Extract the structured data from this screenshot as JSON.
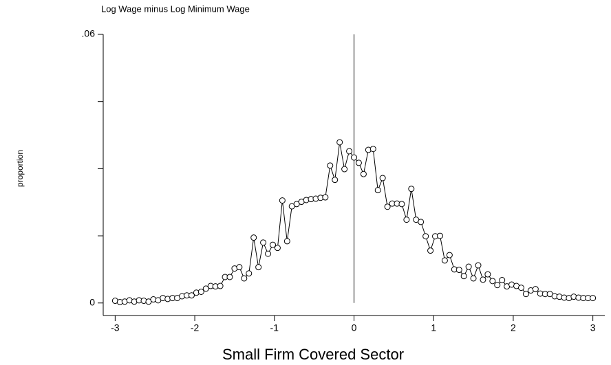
{
  "chart_data": {
    "type": "line",
    "title": "Log Wage minus Log Minimum Wage",
    "x_label": "Small Firm Covered Sector",
    "y_label": "proportion",
    "x": [
      -3,
      -2.94,
      -2.88,
      -2.82,
      -2.76,
      -2.7,
      -2.64,
      -2.58,
      -2.52,
      -2.46,
      -2.4,
      -2.34,
      -2.28,
      -2.22,
      -2.16,
      -2.1,
      -2.04,
      -1.98,
      -1.92,
      -1.86,
      -1.8,
      -1.74,
      -1.68,
      -1.62,
      -1.56,
      -1.5,
      -1.44,
      -1.38,
      -1.32,
      -1.26,
      -1.2,
      -1.14,
      -1.08,
      -1.02,
      -0.96,
      -0.9,
      -0.84,
      -0.78,
      -0.72,
      -0.66,
      -0.6,
      -0.54,
      -0.48,
      -0.42,
      -0.36,
      -0.3,
      -0.24,
      -0.18,
      -0.12,
      -0.06,
      0,
      0.06,
      0.12,
      0.18,
      0.24,
      0.3,
      0.36,
      0.42,
      0.48,
      0.54,
      0.6,
      0.66,
      0.72,
      0.78,
      0.84,
      0.9,
      0.96,
      1.02,
      1.08,
      1.14,
      1.2,
      1.26,
      1.32,
      1.38,
      1.44,
      1.5,
      1.56,
      1.62,
      1.68,
      1.74,
      1.8,
      1.86,
      1.92,
      1.98,
      2.04,
      2.1,
      2.16,
      2.22,
      2.28,
      2.34,
      2.4,
      2.46,
      2.52,
      2.58,
      2.64,
      2.7,
      2.76,
      2.82,
      2.88,
      2.94,
      3
    ],
    "series": [
      {
        "color": "#000000",
        "values": [
          0.0005,
          0.0002,
          0.0003,
          0.0006,
          0.0003,
          0.0006,
          0.0005,
          0.0003,
          0.0008,
          0.0006,
          0.0011,
          0.0009,
          0.0011,
          0.0011,
          0.0015,
          0.0017,
          0.0017,
          0.0023,
          0.0025,
          0.0032,
          0.0038,
          0.0037,
          0.0038,
          0.0058,
          0.0058,
          0.0077,
          0.008,
          0.0055,
          0.0066,
          0.0146,
          0.008,
          0.0135,
          0.011,
          0.013,
          0.0123,
          0.0229,
          0.0138,
          0.0216,
          0.0221,
          0.0226,
          0.023,
          0.0232,
          0.0233,
          0.0235,
          0.0236,
          0.0307,
          0.0275,
          0.0359,
          0.0299,
          0.0339,
          0.0325,
          0.0313,
          0.0288,
          0.0342,
          0.0344,
          0.0252,
          0.0279,
          0.0215,
          0.0222,
          0.0222,
          0.0221,
          0.0186,
          0.0255,
          0.0186,
          0.0181,
          0.0149,
          0.0117,
          0.0149,
          0.015,
          0.0095,
          0.0107,
          0.0075,
          0.0074,
          0.006,
          0.0081,
          0.0055,
          0.0084,
          0.0052,
          0.0064,
          0.0049,
          0.004,
          0.0051,
          0.0037,
          0.0041,
          0.0038,
          0.0034,
          0.002,
          0.0028,
          0.0031,
          0.0021,
          0.002,
          0.002,
          0.0015,
          0.0014,
          0.0012,
          0.0011,
          0.0014,
          0.0012,
          0.0011,
          0.0011,
          0.0011
        ]
      }
    ],
    "xlim": [
      -3.15,
      3.15
    ],
    "xticks": [
      -3,
      -2,
      -1,
      0,
      1,
      2,
      3
    ],
    "ylim": [
      -0.0028,
      0.06
    ],
    "yticks": [
      0,
      {
        "value": 0.06,
        "label": ".06"
      }
    ],
    "yminor_ticks": [
      0.015,
      0.03,
      0.045
    ],
    "vline": 0
  }
}
